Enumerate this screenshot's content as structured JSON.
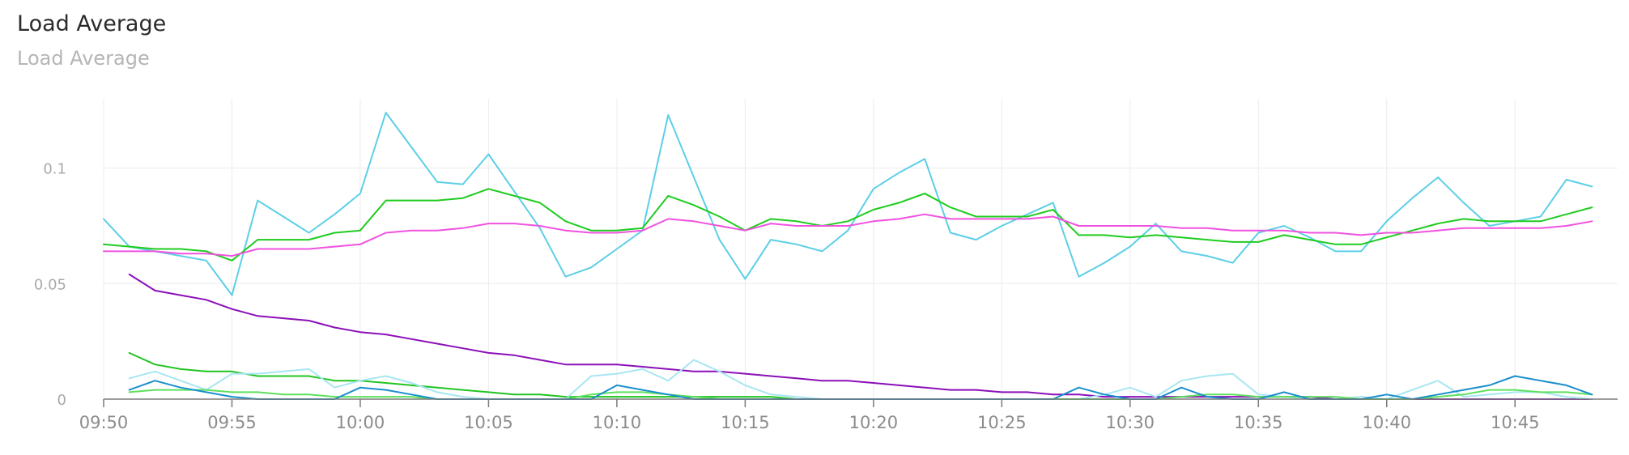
{
  "header": {
    "title": "Load Average",
    "subtitle": "Load Average"
  },
  "chart_data": {
    "type": "line",
    "title": "Load Average",
    "subtitle": "Load Average",
    "xlabel": "",
    "ylabel": "",
    "x_unit": "minutes",
    "x_start_label": "09:50",
    "x_ticks": [
      "09:50",
      "09:55",
      "10:00",
      "10:05",
      "10:10",
      "10:15",
      "10:20",
      "10:25",
      "10:30",
      "10:35",
      "10:40",
      "10:45"
    ],
    "x_tick_values": [
      0,
      5,
      10,
      15,
      20,
      25,
      30,
      35,
      40,
      45,
      50,
      55
    ],
    "xlim": [
      0,
      59
    ],
    "y_ticks": [
      "0",
      "0.05",
      "0.1"
    ],
    "y_tick_values": [
      0,
      0.05,
      0.1
    ],
    "ylim": [
      0,
      0.13
    ],
    "grid": true,
    "series": [
      {
        "color": "#5ccfe6",
        "x": [
          0,
          1,
          2,
          3,
          4,
          5,
          6,
          7,
          8,
          9,
          10,
          11,
          12,
          13,
          14,
          15,
          16,
          17,
          18,
          19,
          20,
          21,
          22,
          23,
          24,
          25,
          26,
          27,
          28,
          29,
          30,
          31,
          32,
          33,
          34,
          35,
          36,
          37,
          38,
          39,
          40,
          41,
          42,
          43,
          44,
          45,
          46,
          47,
          48,
          49,
          50,
          51,
          52,
          53,
          54,
          55,
          56,
          57,
          58
        ],
        "values": [
          0.078,
          0.066,
          0.064,
          0.062,
          0.06,
          0.045,
          0.086,
          0.079,
          0.072,
          0.08,
          0.089,
          0.124,
          0.109,
          0.094,
          0.093,
          0.106,
          0.09,
          0.074,
          0.053,
          0.057,
          0.065,
          0.073,
          0.123,
          0.096,
          0.069,
          0.052,
          0.069,
          0.067,
          0.064,
          0.073,
          0.091,
          0.098,
          0.104,
          0.072,
          0.069,
          0.075,
          0.08,
          0.085,
          0.053,
          0.059,
          0.066,
          0.076,
          0.064,
          0.062,
          0.059,
          0.072,
          0.075,
          0.07,
          0.064,
          0.064,
          0.077,
          0.087,
          0.096,
          0.085,
          0.075,
          0.077,
          0.079,
          0.095,
          0.092
        ]
      },
      {
        "color": "#1fcc1f",
        "x": [
          0,
          1,
          2,
          3,
          4,
          5,
          6,
          7,
          8,
          9,
          10,
          11,
          12,
          13,
          14,
          15,
          16,
          17,
          18,
          19,
          20,
          21,
          22,
          23,
          24,
          25,
          26,
          27,
          28,
          29,
          30,
          31,
          32,
          33,
          34,
          35,
          36,
          37,
          38,
          39,
          40,
          41,
          42,
          43,
          44,
          45,
          46,
          47,
          48,
          49,
          50,
          51,
          52,
          53,
          54,
          55,
          56,
          57,
          58
        ],
        "values": [
          0.067,
          0.066,
          0.065,
          0.065,
          0.064,
          0.06,
          0.069,
          0.069,
          0.069,
          0.072,
          0.073,
          0.086,
          0.086,
          0.086,
          0.087,
          0.091,
          0.088,
          0.085,
          0.077,
          0.073,
          0.073,
          0.074,
          0.088,
          0.084,
          0.079,
          0.073,
          0.078,
          0.077,
          0.075,
          0.077,
          0.082,
          0.085,
          0.089,
          0.083,
          0.079,
          0.079,
          0.079,
          0.082,
          0.071,
          0.071,
          0.07,
          0.071,
          0.07,
          0.069,
          0.068,
          0.068,
          0.071,
          0.069,
          0.067,
          0.067,
          0.07,
          0.073,
          0.076,
          0.078,
          0.077,
          0.077,
          0.077,
          0.08,
          0.083
        ]
      },
      {
        "color": "#f052e0",
        "x": [
          0,
          1,
          2,
          3,
          4,
          5,
          6,
          7,
          8,
          9,
          10,
          11,
          12,
          13,
          14,
          15,
          16,
          17,
          18,
          19,
          20,
          21,
          22,
          23,
          24,
          25,
          26,
          27,
          28,
          29,
          30,
          31,
          32,
          33,
          34,
          35,
          36,
          37,
          38,
          39,
          40,
          41,
          42,
          43,
          44,
          45,
          46,
          47,
          48,
          49,
          50,
          51,
          52,
          53,
          54,
          55,
          56,
          57,
          58
        ],
        "values": [
          0.064,
          0.064,
          0.064,
          0.063,
          0.063,
          0.062,
          0.065,
          0.065,
          0.065,
          0.066,
          0.067,
          0.072,
          0.073,
          0.073,
          0.074,
          0.076,
          0.076,
          0.075,
          0.073,
          0.072,
          0.072,
          0.073,
          0.078,
          0.077,
          0.075,
          0.073,
          0.076,
          0.075,
          0.075,
          0.075,
          0.077,
          0.078,
          0.08,
          0.078,
          0.078,
          0.078,
          0.078,
          0.079,
          0.075,
          0.075,
          0.075,
          0.075,
          0.074,
          0.074,
          0.073,
          0.073,
          0.073,
          0.072,
          0.072,
          0.071,
          0.072,
          0.072,
          0.073,
          0.074,
          0.074,
          0.074,
          0.074,
          0.075,
          0.077
        ]
      },
      {
        "color": "#8b0fb8",
        "x": [
          1,
          2,
          3,
          4,
          5,
          6,
          7,
          8,
          9,
          10,
          11,
          12,
          13,
          14,
          15,
          16,
          17,
          18,
          19,
          20,
          21,
          22,
          23,
          24,
          25,
          26,
          27,
          28,
          29,
          30,
          31,
          32,
          33,
          34,
          35,
          36,
          37,
          38,
          39,
          40,
          41,
          42,
          43,
          44,
          45,
          46,
          47,
          48,
          49,
          50,
          51,
          52,
          53,
          54,
          55,
          56,
          57,
          58
        ],
        "values": [
          0.054,
          0.047,
          0.045,
          0.043,
          0.039,
          0.036,
          0.035,
          0.034,
          0.031,
          0.029,
          0.028,
          0.026,
          0.024,
          0.022,
          0.02,
          0.019,
          0.017,
          0.015,
          0.015,
          0.015,
          0.014,
          0.013,
          0.012,
          0.012,
          0.011,
          0.01,
          0.009,
          0.008,
          0.008,
          0.007,
          0.006,
          0.005,
          0.004,
          0.004,
          0.003,
          0.003,
          0.002,
          0.002,
          0.001,
          0.001,
          0.001,
          0.001,
          0.001,
          0.001,
          0.001,
          0.001,
          0.001,
          0.0,
          0.0,
          0.0,
          0.0,
          0.0,
          0.0,
          0.0,
          0.0,
          0.0,
          0.0,
          0.0
        ]
      },
      {
        "color": "#22c422",
        "x": [
          1,
          2,
          3,
          4,
          5,
          6,
          7,
          8,
          9,
          10,
          11,
          12,
          13,
          14,
          15,
          16,
          17,
          18,
          19,
          20,
          21,
          22,
          23,
          24,
          25,
          26,
          27,
          28,
          29
        ],
        "values": [
          0.02,
          0.015,
          0.013,
          0.012,
          0.012,
          0.01,
          0.01,
          0.01,
          0.008,
          0.008,
          0.007,
          0.006,
          0.005,
          0.004,
          0.003,
          0.002,
          0.002,
          0.001,
          0.001,
          0.001,
          0.001,
          0.001,
          0.001,
          0.001,
          0.001,
          0.001,
          0.0,
          0.0,
          0.0
        ]
      },
      {
        "color": "#a8e6f2",
        "x": [
          1,
          2,
          3,
          4,
          5,
          6,
          7,
          8,
          9,
          10,
          11,
          12,
          13,
          14,
          15,
          16,
          17,
          18,
          19,
          20,
          21,
          22,
          23,
          24,
          25,
          26,
          27,
          28,
          29,
          30,
          31,
          32,
          33,
          34,
          35,
          36,
          37,
          38,
          39,
          40,
          41,
          42,
          43,
          44,
          45,
          46,
          47,
          48,
          49,
          50,
          51,
          52,
          53,
          54,
          55,
          56,
          57,
          58
        ],
        "values": [
          0.009,
          0.012,
          0.008,
          0.004,
          0.011,
          0.011,
          0.012,
          0.013,
          0.005,
          0.008,
          0.01,
          0.007,
          0.003,
          0.001,
          0.0,
          0.0,
          0.0,
          0.0,
          0.01,
          0.011,
          0.013,
          0.008,
          0.017,
          0.012,
          0.006,
          0.002,
          0.001,
          0.0,
          0.0,
          0.0,
          0.0,
          0.0,
          0.0,
          0.0,
          0.0,
          0.0,
          0.0,
          0.0,
          0.002,
          0.005,
          0.001,
          0.008,
          0.01,
          0.011,
          0.002,
          0.001,
          0.0,
          0.0,
          0.001,
          0.0,
          0.004,
          0.008,
          0.001,
          0.002,
          0.003,
          0.003,
          0.001,
          0.0
        ]
      },
      {
        "color": "#5ee05e",
        "x": [
          1,
          2,
          3,
          4,
          5,
          6,
          7,
          8,
          9,
          10,
          11,
          12,
          13,
          14,
          15,
          16,
          17,
          18,
          19,
          20,
          21,
          22,
          23,
          24,
          25,
          26,
          27,
          28,
          29,
          30,
          31,
          32,
          33,
          34,
          35,
          36,
          37,
          38,
          39,
          40,
          41,
          42,
          43,
          44,
          45,
          46,
          47,
          48,
          49,
          50,
          51,
          52,
          53,
          54,
          55,
          56,
          57,
          58
        ],
        "values": [
          0.003,
          0.004,
          0.004,
          0.004,
          0.003,
          0.003,
          0.002,
          0.002,
          0.001,
          0.001,
          0.001,
          0.001,
          0.0,
          0.0,
          0.0,
          0.0,
          0.0,
          0.0,
          0.002,
          0.003,
          0.003,
          0.002,
          0.001,
          0.0,
          0.0,
          0.0,
          0.0,
          0.0,
          0.0,
          0.0,
          0.0,
          0.0,
          0.0,
          0.0,
          0.0,
          0.0,
          0.0,
          0.0,
          0.0,
          0.0,
          0.0,
          0.001,
          0.002,
          0.002,
          0.001,
          0.001,
          0.001,
          0.001,
          0.0,
          0.0,
          0.0,
          0.001,
          0.002,
          0.004,
          0.004,
          0.003,
          0.003,
          0.002
        ]
      },
      {
        "color": "#1a8fcc",
        "x": [
          1,
          2,
          3,
          4,
          5,
          6,
          7,
          8,
          9,
          10,
          11,
          12,
          13,
          14,
          15,
          16,
          17,
          18,
          19,
          20,
          21,
          22,
          23,
          24,
          25,
          26,
          27,
          28,
          29,
          30,
          31,
          32,
          33,
          34,
          35,
          36,
          37,
          38,
          39,
          40,
          41,
          42,
          43,
          44,
          45,
          46,
          47,
          48,
          49,
          50,
          51,
          52,
          53,
          54,
          55,
          56,
          57,
          58
        ],
        "values": [
          0.004,
          0.008,
          0.005,
          0.003,
          0.001,
          0.0,
          0.0,
          0.0,
          0.0,
          0.005,
          0.004,
          0.002,
          0.0,
          0.0,
          0.0,
          0.0,
          0.0,
          0.0,
          0.0,
          0.006,
          0.004,
          0.002,
          0.0,
          0.0,
          0.0,
          0.0,
          0.0,
          0.0,
          0.0,
          0.0,
          0.0,
          0.0,
          0.0,
          0.0,
          0.0,
          0.0,
          0.0,
          0.005,
          0.002,
          0.0,
          0.0,
          0.005,
          0.001,
          0.0,
          0.0,
          0.003,
          0.0,
          0.0,
          0.0,
          0.002,
          0.0,
          0.002,
          0.004,
          0.006,
          0.01,
          0.008,
          0.006,
          0.002
        ]
      }
    ]
  }
}
